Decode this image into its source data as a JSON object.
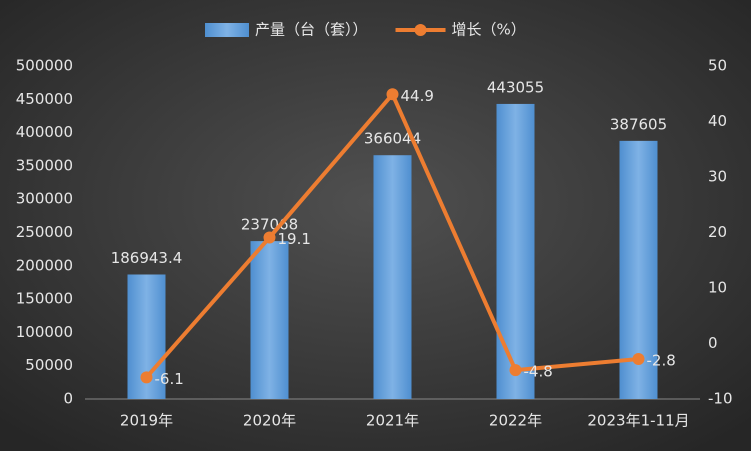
{
  "chart_data": {
    "type": "bar",
    "categories": [
      "2019年",
      "2020年",
      "2021年",
      "2022年",
      "2023年1-11月"
    ],
    "series": [
      {
        "name": "产量（台（套））",
        "color": "#5b9bd5",
        "values": [
          186943.4,
          237068,
          366044,
          443055,
          387605
        ]
      },
      {
        "name": "增长（%）",
        "color": "#ed7d31",
        "type": "line",
        "axis": "y2",
        "values": [
          -6.1,
          19.1,
          44.9,
          -4.8,
          -2.8
        ]
      }
    ],
    "ylim": [
      0,
      500000
    ],
    "yticks": [
      0,
      50000,
      100000,
      150000,
      200000,
      250000,
      300000,
      350000,
      400000,
      450000,
      500000
    ],
    "y2lim": [
      -10,
      50
    ],
    "y2ticks": [
      -10,
      0,
      10,
      20,
      30,
      40,
      50
    ],
    "grid": false
  }
}
